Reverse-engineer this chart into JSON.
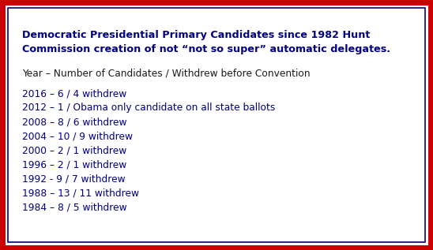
{
  "title_line1": "Democratic Presidential Primary Candidates since 1982 Hunt",
  "title_line2": "Commission creation of not “not so super” automatic delegates.",
  "subtitle": "Year – Number of Candidates / Withdrew before Convention",
  "rows": [
    "2016 – 6 / 4 withdrew",
    "2012 – 1 / Obama only candidate on all state ballots",
    "2008 – 8 / 6 withdrew",
    "2004 – 10 / 9 withdrew",
    "2000 – 2 / 1 withdrew",
    "1996 – 2 / 1 withdrew",
    "1992 - 9 / 7 withdrew",
    "1988 – 13 / 11 withdrew",
    "1984 – 8 / 5 withdrew"
  ],
  "bg_color": "#ffffff",
  "outer_border_color": "#cc0000",
  "inner_border_color": "#000080",
  "title_color": "#000080",
  "subtitle_color": "#1a1a1a",
  "row_color": "#000080",
  "title_fontsize": 9.2,
  "subtitle_fontsize": 8.8,
  "row_fontsize": 8.8,
  "figwidth": 5.48,
  "figheight": 3.17,
  "dpi": 100
}
